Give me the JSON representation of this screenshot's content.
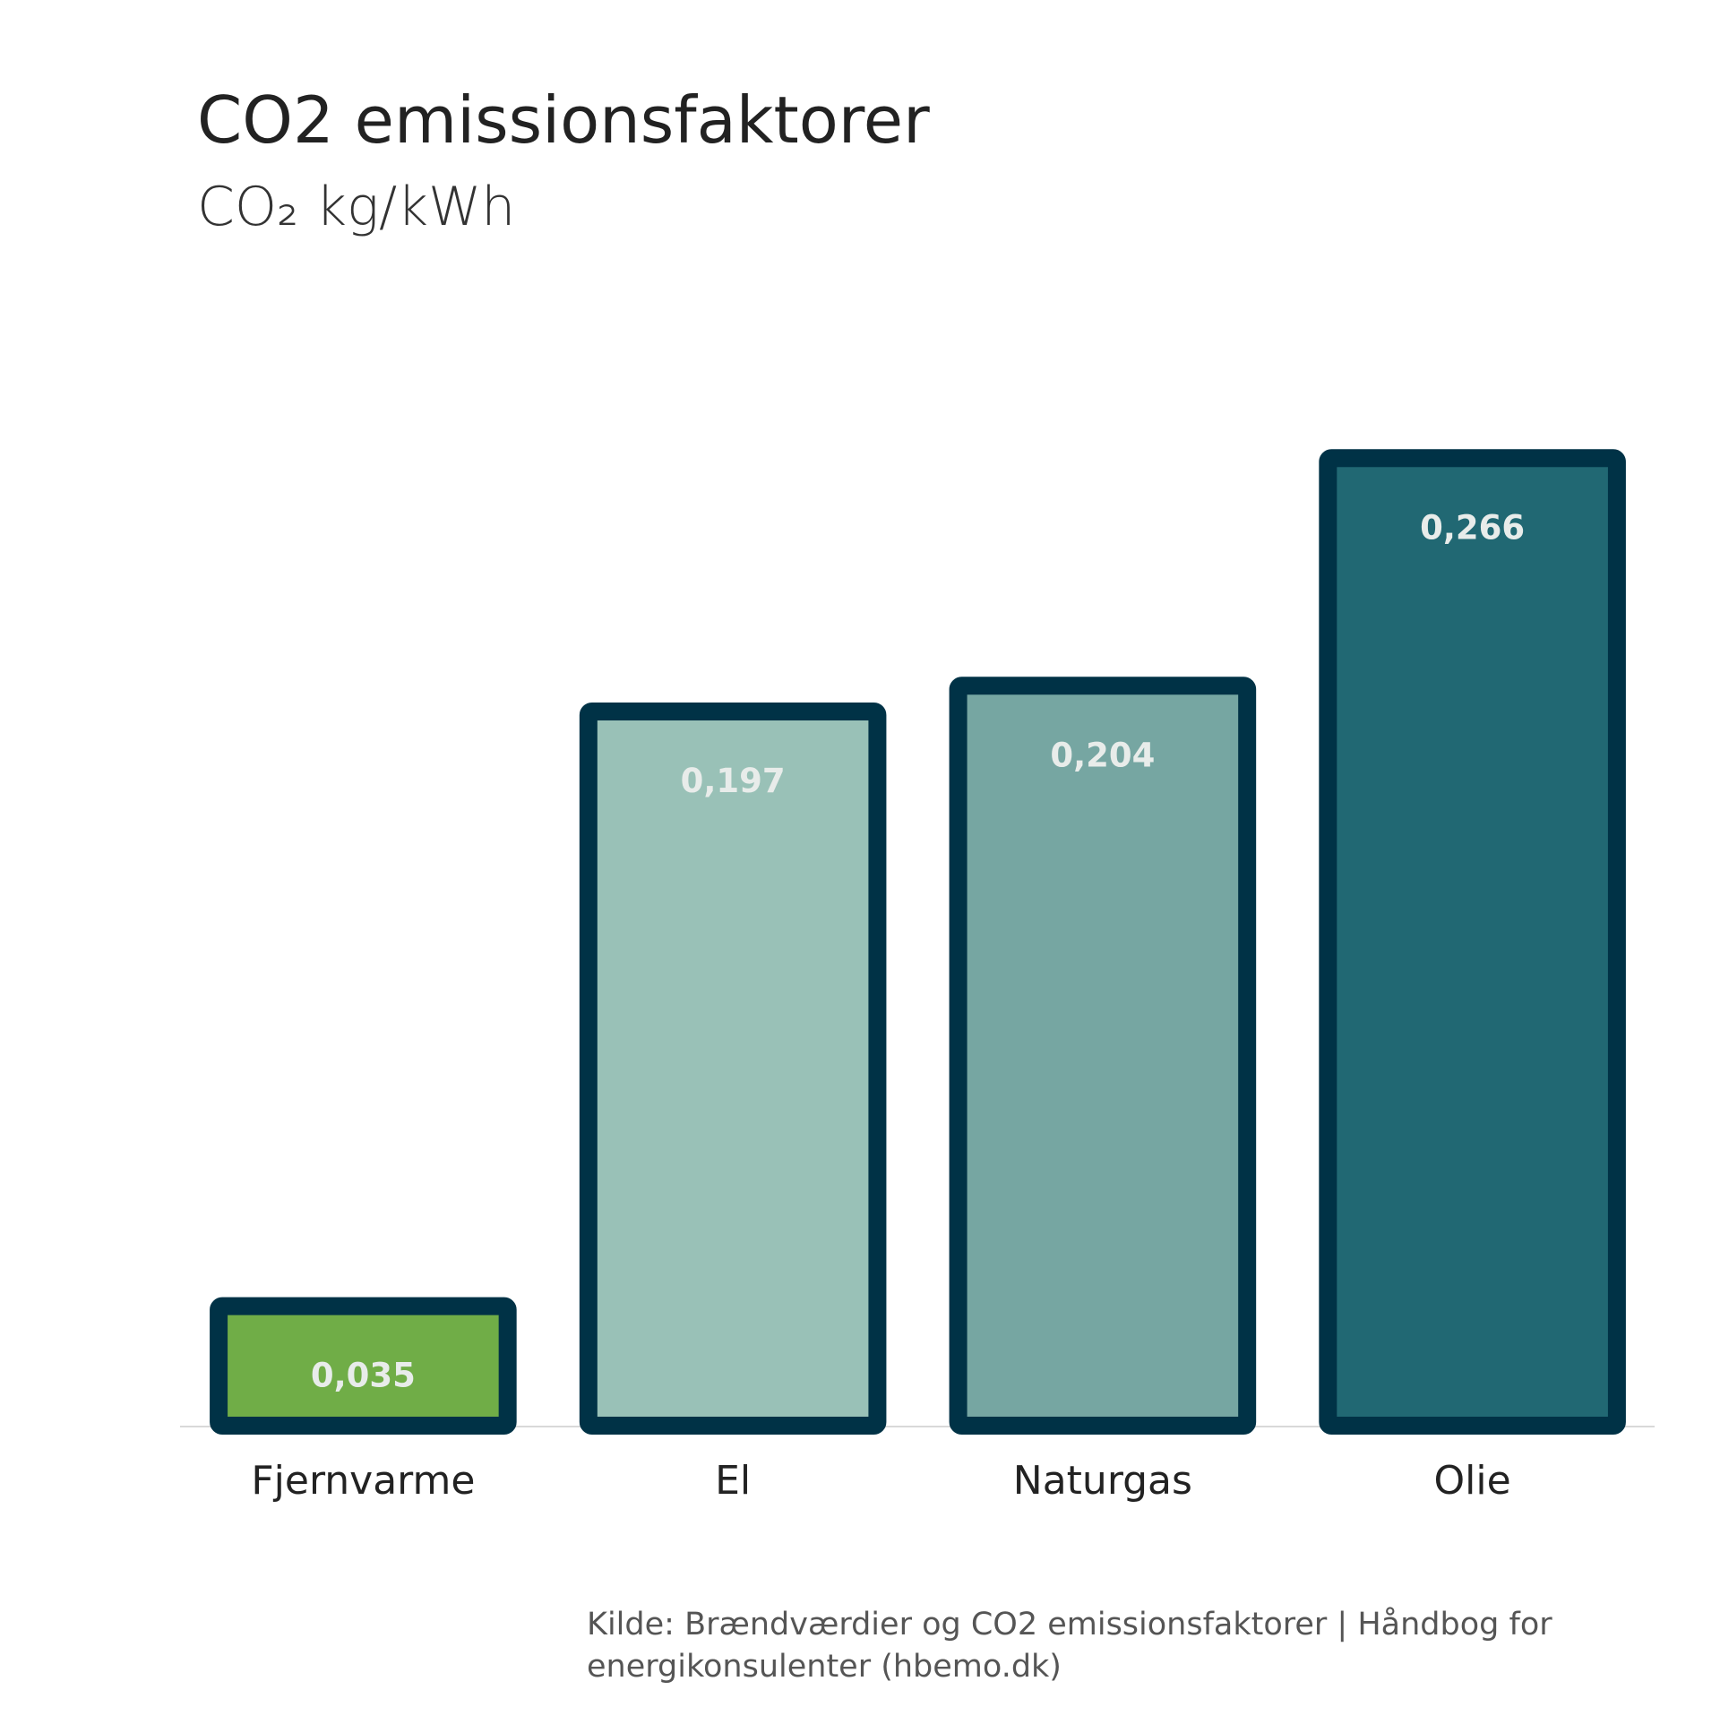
{
  "chart_data": {
    "type": "bar",
    "title": "CO2 emissionsfaktorer",
    "subtitle": "CO₂ kg/kWh",
    "categories": [
      "Fjernvarme",
      "El",
      "Naturgas",
      "Olie"
    ],
    "values": [
      0.035,
      0.197,
      0.204,
      0.266
    ],
    "value_labels": [
      "0,035",
      "0,197",
      "0,204",
      "0,266"
    ],
    "colors": [
      "#70ad47",
      "#99c1b7",
      "#76a6a2",
      "#216873"
    ],
    "edge_color": "#003246",
    "ylim": [
      0,
      0.3
    ],
    "source": "Kilde: Brændværdier og CO2 emissionsfaktorer | Håndbog for energikonsulenter (hbemo.dk)"
  }
}
